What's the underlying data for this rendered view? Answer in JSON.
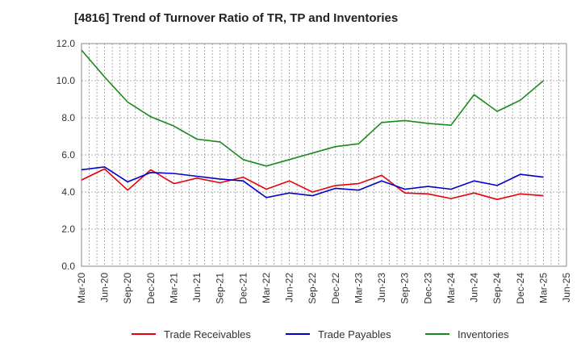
{
  "chart_data": {
    "type": "line",
    "title": "[4816]  Trend of Turnover Ratio of TR, TP and Inventories",
    "xlabel": "",
    "ylabel": "",
    "ylim": [
      0,
      12
    ],
    "yticks": [
      "0.0",
      "2.0",
      "4.0",
      "6.0",
      "8.0",
      "10.0",
      "12.0"
    ],
    "grid": true,
    "legend_position": "bottom",
    "x": [
      "Mar-20",
      "Jun-20",
      "Sep-20",
      "Dec-20",
      "Mar-21",
      "Jun-21",
      "Sep-21",
      "Dec-21",
      "Mar-22",
      "Jun-22",
      "Sep-22",
      "Dec-22",
      "Mar-23",
      "Jun-23",
      "Sep-23",
      "Dec-23",
      "Mar-24",
      "Jun-24",
      "Sep-24",
      "Dec-24",
      "Mar-25",
      "Jun-25"
    ],
    "series": [
      {
        "name": "Trade Receivables",
        "color": "#e8000b",
        "values": [
          4.65,
          5.25,
          4.1,
          5.2,
          4.45,
          4.75,
          4.5,
          4.8,
          4.15,
          4.6,
          4.0,
          4.35,
          4.45,
          4.9,
          3.95,
          3.9,
          3.65,
          3.95,
          3.6,
          3.9,
          3.8,
          null
        ]
      },
      {
        "name": "Trade Payables",
        "color": "#0000cc",
        "values": [
          5.2,
          5.35,
          4.55,
          5.05,
          5.0,
          4.85,
          4.7,
          4.6,
          3.7,
          3.95,
          3.8,
          4.2,
          4.1,
          4.6,
          4.15,
          4.3,
          4.15,
          4.6,
          4.35,
          4.95,
          4.8,
          null
        ]
      },
      {
        "name": "Inventories",
        "color": "#1a8a1a",
        "values": [
          11.65,
          10.2,
          8.85,
          8.05,
          7.55,
          6.85,
          6.7,
          5.75,
          5.4,
          5.75,
          6.1,
          6.45,
          6.6,
          7.75,
          7.85,
          7.7,
          7.6,
          9.25,
          8.35,
          8.95,
          10.0,
          null
        ]
      }
    ]
  }
}
